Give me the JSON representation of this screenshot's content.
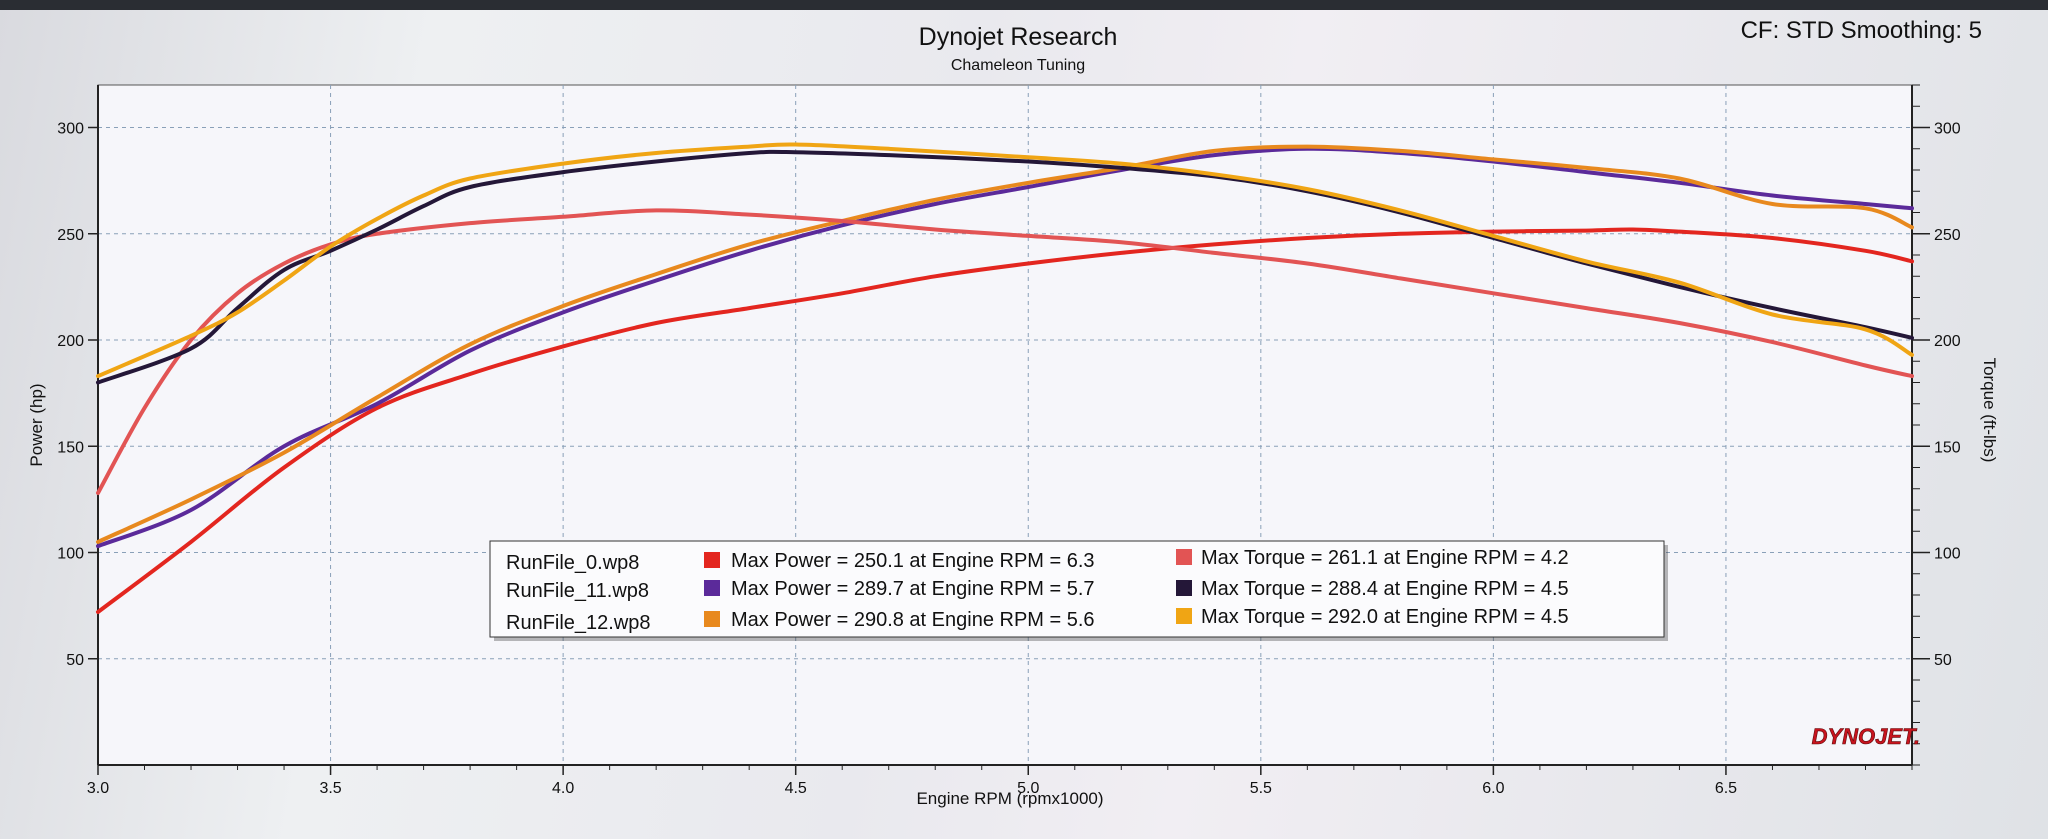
{
  "chart_data": {
    "type": "line",
    "title": "Dynojet Research",
    "subtitle": "Chameleon Tuning",
    "corner_info": "CF: STD Smoothing: 5",
    "brand": "DYNOJET.",
    "xlabel": "Engine RPM (rpmx1000)",
    "ylabel_left": "Power (hp)",
    "ylabel_right": "Torque (ft-lbs)",
    "xlim": [
      3.0,
      6.9
    ],
    "ylim_left": [
      0,
      320
    ],
    "ylim_right": [
      0,
      320
    ],
    "x_ticks": [
      "3.0",
      "3.5",
      "4.0",
      "4.5",
      "5.0",
      "5.5",
      "6.0",
      "6.5"
    ],
    "y_ticks_left": [
      "50",
      "100",
      "150",
      "200",
      "250",
      "300"
    ],
    "y_ticks_right": [
      "50",
      "100",
      "150",
      "200",
      "250",
      "300"
    ],
    "grid": true,
    "legend_position": "bottom-center",
    "legend": {
      "files": [
        "RunFile_0.wp8",
        "RunFile_11.wp8",
        "RunFile_12.wp8"
      ],
      "power_entries": [
        {
          "label": "Max Power = 250.1 at Engine RPM = 6.3",
          "color": "#e3261f"
        },
        {
          "label": "Max Power = 289.7 at Engine RPM = 5.7",
          "color": "#5b2a9a"
        },
        {
          "label": "Max Power = 290.8 at Engine RPM = 5.6",
          "color": "#e8891e"
        }
      ],
      "torque_entries": [
        {
          "label": "Max Torque = 261.1 at Engine RPM = 4.2",
          "color": "#e25454"
        },
        {
          "label": "Max Torque = 288.4 at Engine RPM = 4.5",
          "color": "#241738"
        },
        {
          "label": "Max Torque = 292.0 at Engine RPM = 4.5",
          "color": "#f0a514"
        }
      ]
    },
    "series": [
      {
        "name": "RunFile_0.wp8",
        "kind": "power",
        "color": "#e3261f",
        "x": [
          3.0,
          3.2,
          3.4,
          3.6,
          3.8,
          4.0,
          4.2,
          4.4,
          4.6,
          4.8,
          5.0,
          5.2,
          5.4,
          5.6,
          5.8,
          6.0,
          6.2,
          6.3,
          6.4,
          6.6,
          6.8,
          6.9
        ],
        "y": [
          72,
          105,
          140,
          168,
          184,
          197,
          208,
          215,
          222,
          230,
          236,
          241,
          245,
          248,
          250,
          251,
          251.5,
          252,
          251,
          248,
          242,
          237
        ]
      },
      {
        "name": "RunFile_11.wp8",
        "kind": "power",
        "color": "#5b2a9a",
        "x": [
          3.0,
          3.2,
          3.4,
          3.6,
          3.8,
          4.0,
          4.2,
          4.4,
          4.6,
          4.8,
          5.0,
          5.2,
          5.4,
          5.6,
          5.8,
          6.0,
          6.2,
          6.4,
          6.6,
          6.8,
          6.9
        ],
        "y": [
          103,
          120,
          150,
          170,
          195,
          213,
          228,
          242,
          254,
          264,
          272,
          280,
          287,
          290,
          288,
          284,
          279,
          274,
          268,
          264,
          262
        ]
      },
      {
        "name": "RunFile_12.wp8",
        "kind": "power",
        "color": "#e8891e",
        "x": [
          3.0,
          3.2,
          3.4,
          3.6,
          3.8,
          4.0,
          4.2,
          4.4,
          4.6,
          4.8,
          5.0,
          5.2,
          5.4,
          5.6,
          5.8,
          6.0,
          6.2,
          6.4,
          6.6,
          6.8,
          6.9
        ],
        "y": [
          105,
          125,
          147,
          173,
          198,
          216,
          231,
          245,
          256,
          266,
          274,
          281,
          289,
          291,
          289,
          285,
          281,
          276,
          264,
          262,
          253
        ]
      },
      {
        "name": "RunFile_0.wp8",
        "kind": "torque",
        "color": "#e25454",
        "x": [
          3.0,
          3.1,
          3.2,
          3.3,
          3.4,
          3.5,
          3.6,
          3.8,
          4.0,
          4.2,
          4.4,
          4.6,
          4.8,
          5.0,
          5.2,
          5.4,
          5.6,
          5.8,
          6.0,
          6.2,
          6.4,
          6.6,
          6.8,
          6.9
        ],
        "y": [
          128,
          168,
          200,
          222,
          236,
          245,
          250,
          255,
          258,
          261,
          259,
          256,
          252,
          249,
          246,
          241,
          236,
          229,
          222,
          215,
          208,
          199,
          188,
          183
        ]
      },
      {
        "name": "RunFile_11.wp8",
        "kind": "torque",
        "color": "#241738",
        "x": [
          3.0,
          3.2,
          3.3,
          3.4,
          3.5,
          3.6,
          3.7,
          3.8,
          4.0,
          4.2,
          4.4,
          4.5,
          4.7,
          5.0,
          5.2,
          5.4,
          5.6,
          5.8,
          6.0,
          6.2,
          6.4,
          6.6,
          6.8,
          6.9
        ],
        "y": [
          180,
          196,
          215,
          233,
          242,
          252,
          263,
          272,
          279,
          284,
          288,
          288.4,
          287,
          284,
          281,
          277,
          270,
          260,
          248,
          236,
          225,
          215,
          206,
          201
        ]
      },
      {
        "name": "RunFile_12.wp8",
        "kind": "torque",
        "color": "#f0a514",
        "x": [
          3.0,
          3.2,
          3.3,
          3.4,
          3.5,
          3.6,
          3.7,
          3.8,
          4.0,
          4.2,
          4.4,
          4.5,
          4.7,
          5.0,
          5.2,
          5.4,
          5.6,
          5.8,
          6.0,
          6.2,
          6.4,
          6.6,
          6.8,
          6.9
        ],
        "y": [
          183,
          202,
          213,
          228,
          244,
          257,
          268,
          276,
          283,
          288,
          291,
          292,
          290,
          286,
          283,
          278,
          271,
          261,
          249,
          237,
          227,
          212,
          205,
          193
        ]
      }
    ]
  }
}
